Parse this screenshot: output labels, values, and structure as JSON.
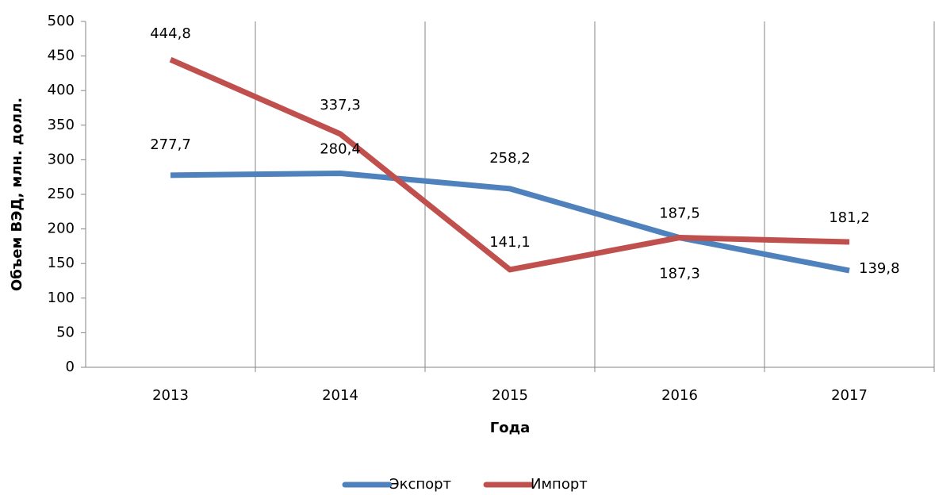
{
  "chart_data": {
    "type": "line",
    "xlabel": "Года",
    "ylabel": "Объем ВЭД, млн. долл.",
    "categories": [
      "2013",
      "2014",
      "2015",
      "2016",
      "2017"
    ],
    "series": [
      {
        "name": "Экспорт",
        "color": "#4f81bd",
        "values": [
          277.7,
          280.4,
          258.2,
          187.3,
          139.8
        ],
        "value_labels": [
          "277,7",
          "280,4",
          "258,2",
          "187,3",
          "139,8"
        ]
      },
      {
        "name": "Импорт",
        "color": "#c0504d",
        "values": [
          444.8,
          337.3,
          141.1,
          187.5,
          181.2
        ],
        "value_labels": [
          "444,8",
          "337,3",
          "141,1",
          "187,5",
          "181,2"
        ]
      }
    ],
    "ylim": [
      0,
      500
    ],
    "yticks": [
      0,
      50,
      100,
      150,
      200,
      250,
      300,
      350,
      400,
      450,
      500
    ],
    "grid": "x",
    "legend": "bottom"
  }
}
